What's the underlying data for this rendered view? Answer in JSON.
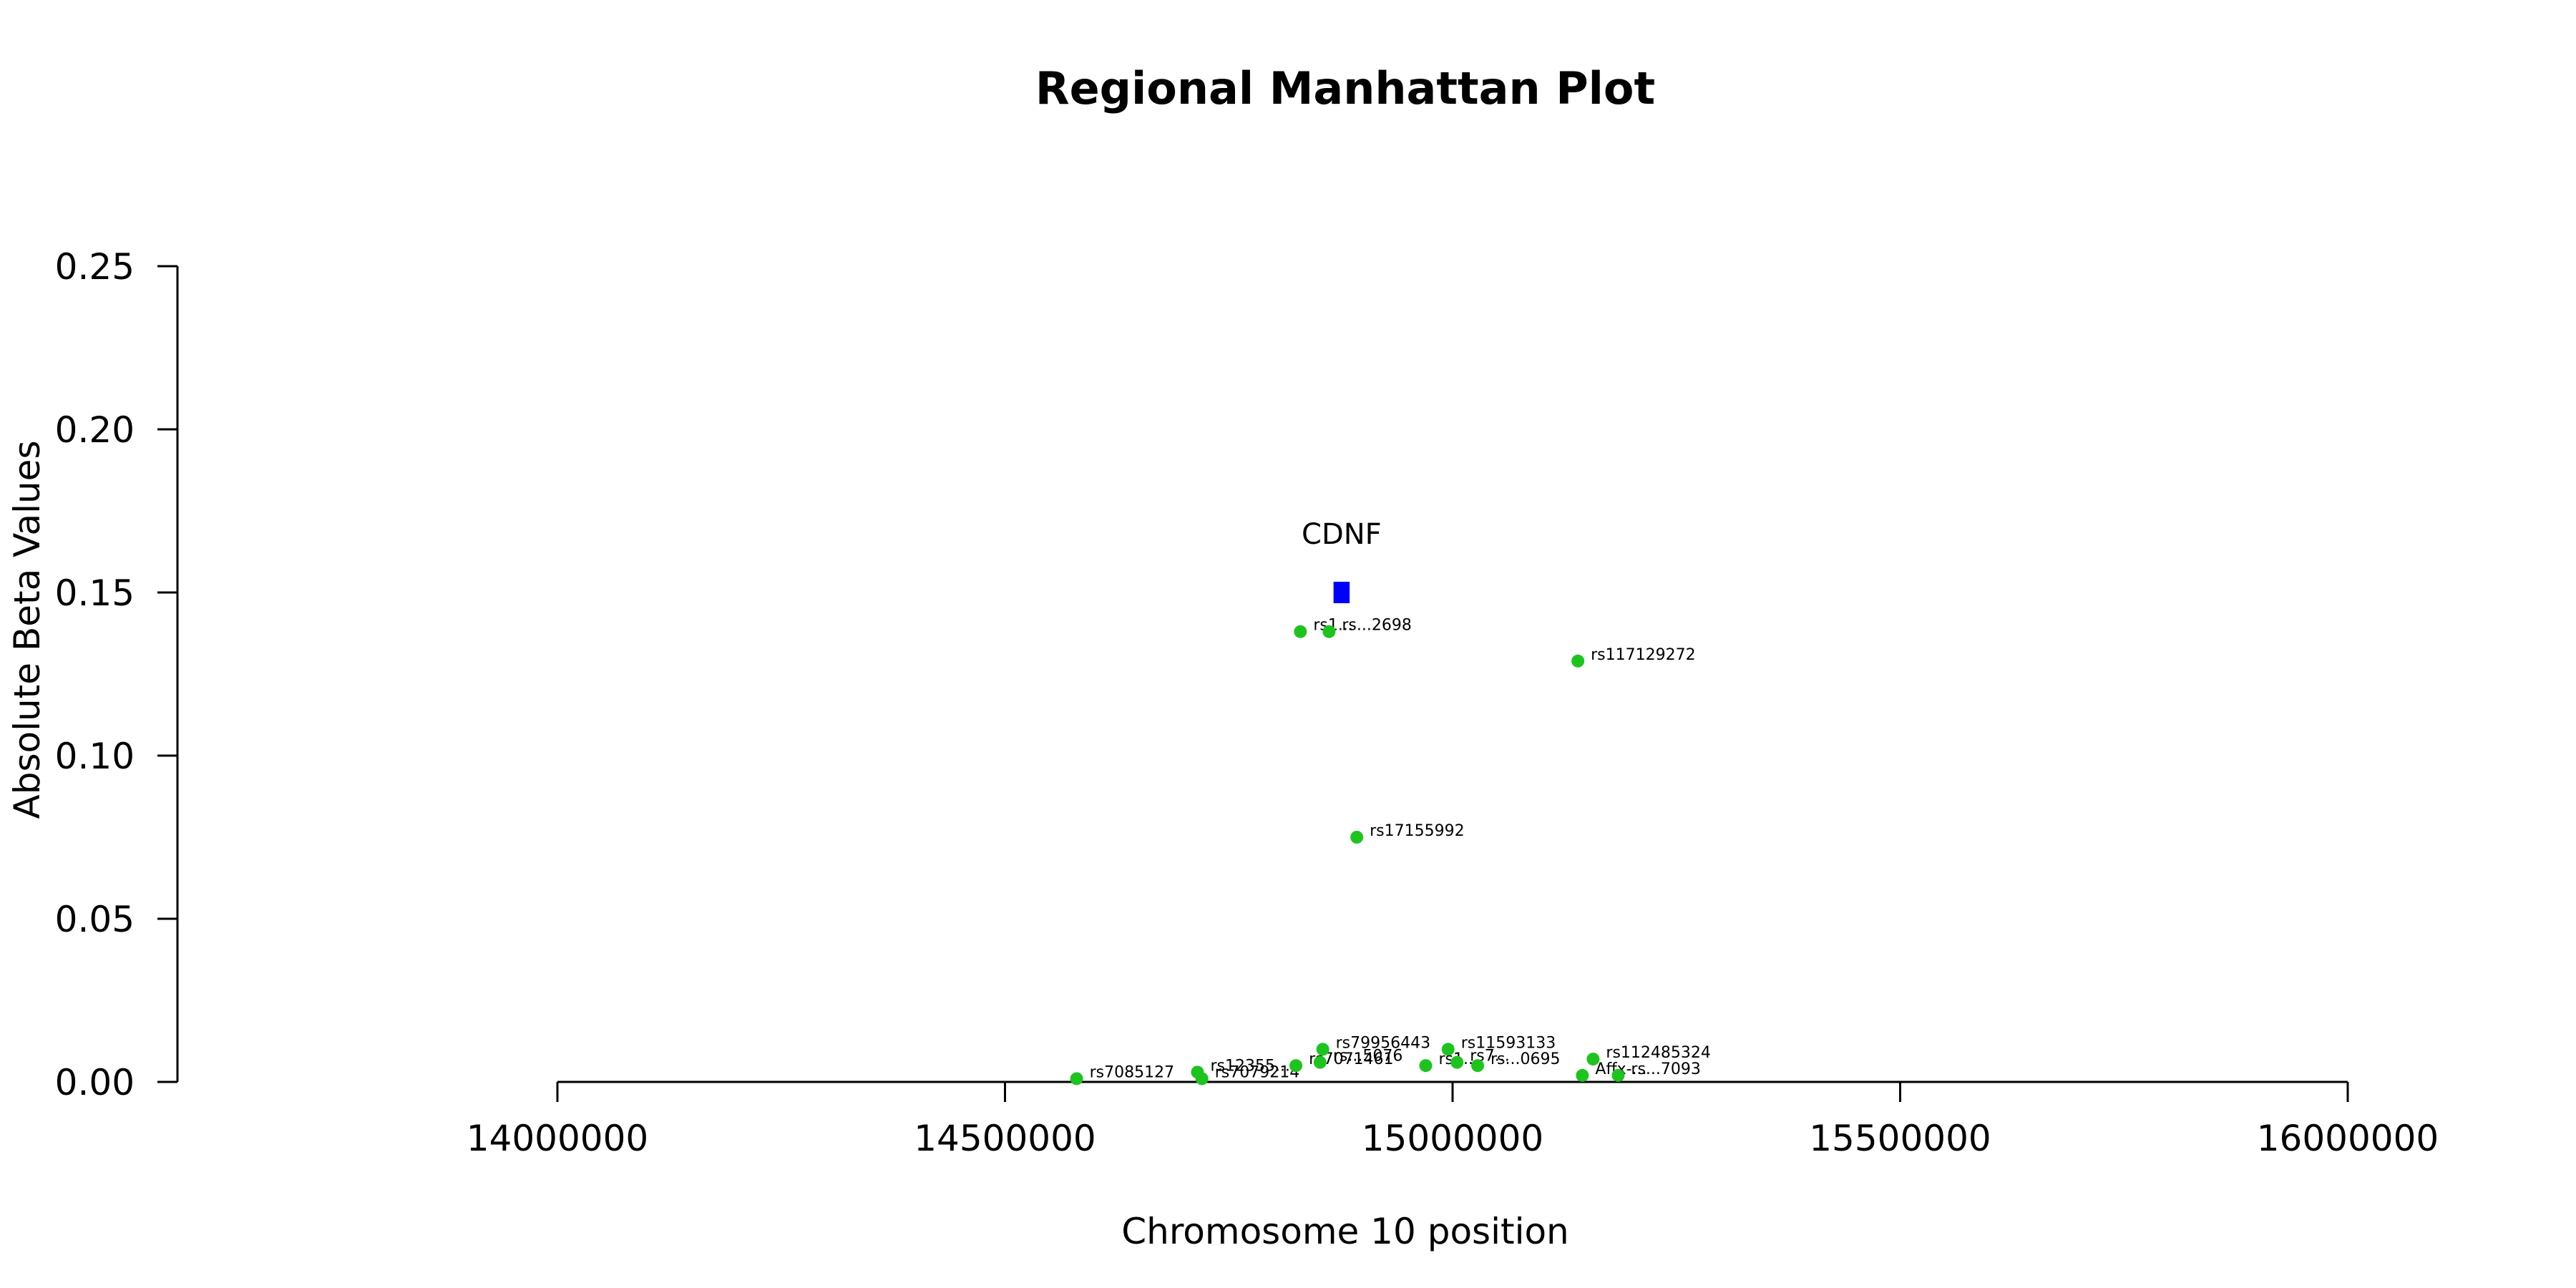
{
  "chart_data": {
    "type": "scatter",
    "title": "Regional Manhattan Plot",
    "xlabel": "Chromosome 10 position",
    "ylabel": "Absolute Beta Values",
    "xlim": [
      14000000,
      16000000
    ],
    "ylim": [
      0,
      0.25
    ],
    "x_ticks": [
      "14000000",
      "14500000",
      "15000000",
      "15500000",
      "16000000"
    ],
    "y_ticks": [
      "0.00",
      "0.05",
      "0.10",
      "0.15",
      "0.20",
      "0.25"
    ],
    "grid": false,
    "point_color": "#1ec41e",
    "gene_color": "#0000ff",
    "points": [
      {
        "label": "rs7085127",
        "x": 14580000,
        "y": 0.001
      },
      {
        "label": "rs12355...",
        "x": 14715000,
        "y": 0.003
      },
      {
        "label": "rs7079214",
        "x": 14720000,
        "y": 0.001
      },
      {
        "label": "rs7071461",
        "x": 14825000,
        "y": 0.005
      },
      {
        "label": "rs79956443",
        "x": 14855000,
        "y": 0.01
      },
      {
        "label": "rs...5076",
        "x": 14852000,
        "y": 0.006
      },
      {
        "label": "rs1...",
        "x": 14830000,
        "y": 0.138
      },
      {
        "label": "rs...2698",
        "x": 14862000,
        "y": 0.138
      },
      {
        "label": "rs17155992",
        "x": 14893000,
        "y": 0.075
      },
      {
        "label": "rs11593133",
        "x": 14995000,
        "y": 0.01
      },
      {
        "label": "rs1...",
        "x": 14970000,
        "y": 0.005
      },
      {
        "label": "rs7...",
        "x": 15005000,
        "y": 0.006
      },
      {
        "label": "rs...0695",
        "x": 15028000,
        "y": 0.005
      },
      {
        "label": "rs117129272",
        "x": 15140000,
        "y": 0.129
      },
      {
        "label": "rs112485324",
        "x": 15157000,
        "y": 0.007
      },
      {
        "label": "Affx-...",
        "x": 15145000,
        "y": 0.002
      },
      {
        "label": "rs...7093",
        "x": 15185000,
        "y": 0.002
      }
    ],
    "genes": [
      {
        "name": "CDNF",
        "start": 14867000,
        "end": 14885000,
        "y": 0.15
      }
    ]
  }
}
